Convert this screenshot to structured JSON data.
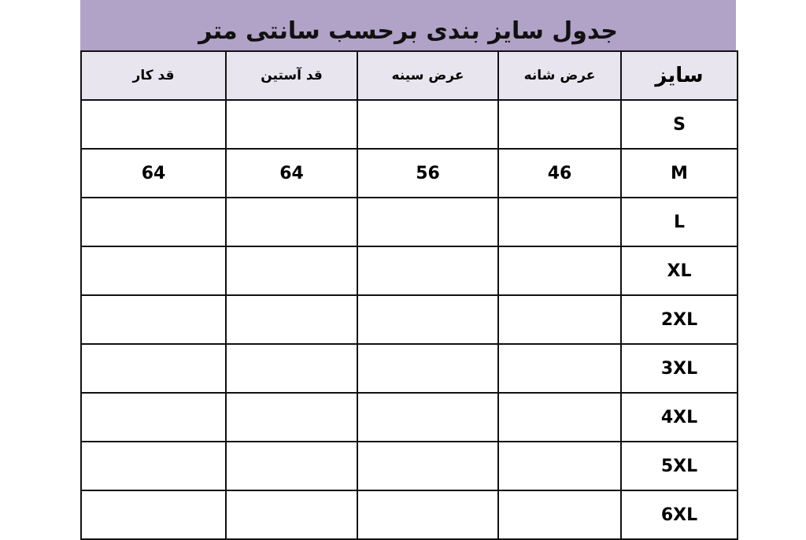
{
  "title": "جدول سایز بندی برحسب سانتی متر",
  "headers": [
    "قد کار",
    "قد آستین",
    "عرض سینه",
    "عرض شانه",
    "سایز"
  ],
  "rows": [
    {
      "size": "S",
      "shoulder": "",
      "chest": "",
      "sleeve": "",
      "length": ""
    },
    {
      "size": "M",
      "shoulder": "46",
      "chest": "56",
      "sleeve": "64",
      "length": "64"
    },
    {
      "size": "L",
      "shoulder": "",
      "chest": "",
      "sleeve": "",
      "length": ""
    },
    {
      "size": "XL",
      "shoulder": "",
      "chest": "",
      "sleeve": "",
      "length": ""
    },
    {
      "size": "2XL",
      "shoulder": "",
      "chest": "",
      "sleeve": "",
      "length": ""
    },
    {
      "size": "3XL",
      "shoulder": "",
      "chest": "",
      "sleeve": "",
      "length": ""
    },
    {
      "size": "4XL",
      "shoulder": "",
      "chest": "",
      "sleeve": "",
      "length": ""
    },
    {
      "size": "5XL",
      "shoulder": "",
      "chest": "",
      "sleeve": "",
      "length": ""
    },
    {
      "size": "6XL",
      "shoulder": "",
      "chest": "",
      "sleeve": "",
      "length": ""
    }
  ],
  "colors": {
    "banner": "#b1a2c8",
    "header_bg": "#e9e5ef"
  }
}
